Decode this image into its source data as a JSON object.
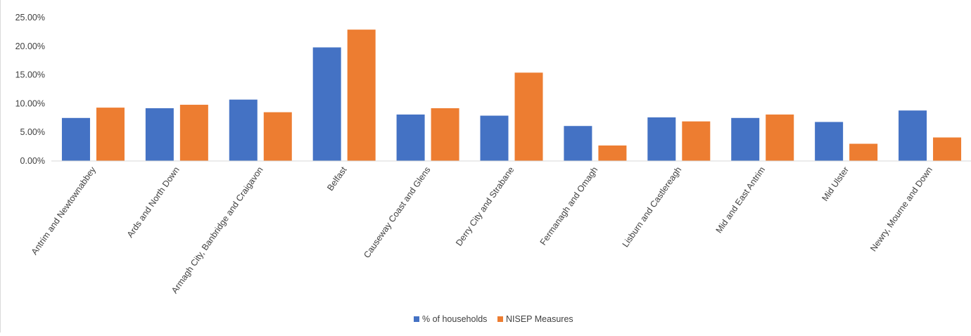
{
  "chart_data": {
    "type": "bar",
    "categories": [
      "Antrim and Newtownabbey",
      "Ards and North Down",
      "Armagh City, Banbridge and Craigavon",
      "Belfast",
      "Causeway Coast and Glens",
      "Derry City and Strabane",
      "Fermanagh and Omagh",
      "Lisburn and Castlereagh",
      "Mid and East Antrim",
      "Mid Ulster",
      "Newry, Mourne and Down"
    ],
    "series": [
      {
        "name": "% of households",
        "color": "#4472C4",
        "values": [
          7.5,
          9.2,
          10.7,
          19.8,
          8.1,
          7.9,
          6.1,
          7.6,
          7.5,
          6.8,
          8.8
        ]
      },
      {
        "name": "NISEP Measures",
        "color": "#ED7D31",
        "values": [
          9.3,
          9.8,
          8.5,
          22.9,
          9.2,
          15.4,
          2.7,
          6.9,
          8.1,
          3.0,
          4.1
        ]
      }
    ],
    "yticks": [
      "0.00%",
      "5.00%",
      "10.00%",
      "15.00%",
      "20.00%",
      "25.00%"
    ],
    "ylim": [
      0,
      25
    ],
    "grid": false,
    "legend_position": "bottom"
  }
}
